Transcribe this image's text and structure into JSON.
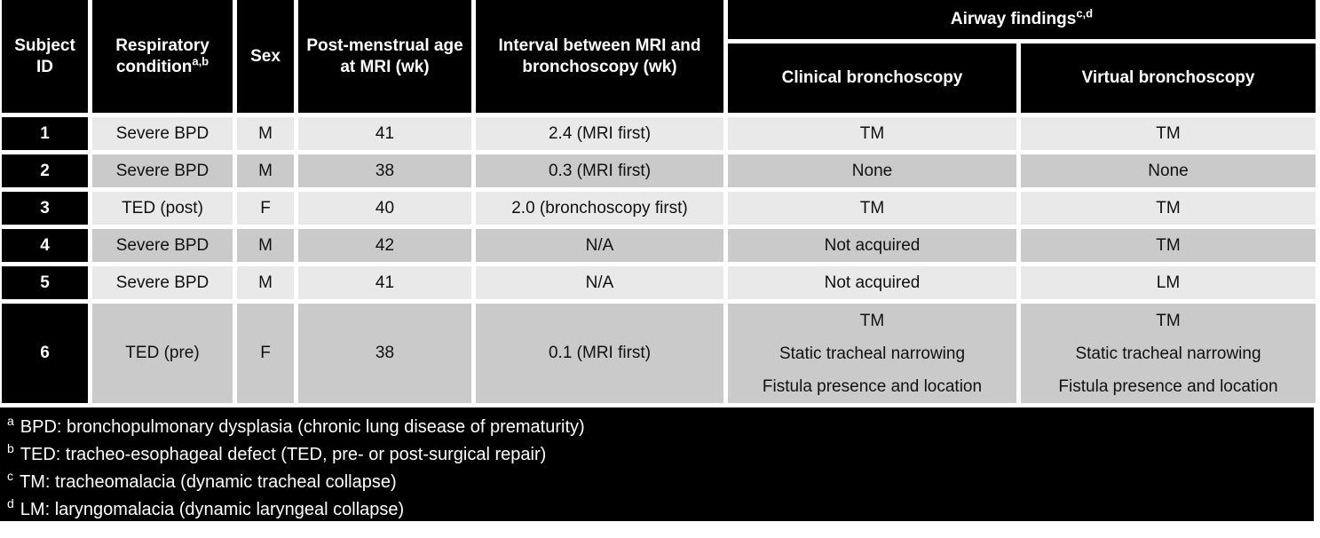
{
  "table": {
    "columns": [
      {
        "label": "Subject ID",
        "sup": ""
      },
      {
        "label": "Respiratory condition",
        "sup": "a,b"
      },
      {
        "label": "Sex",
        "sup": ""
      },
      {
        "label": "Post-menstrual age at MRI (wk)",
        "sup": ""
      },
      {
        "label": "Interval between MRI and bronchoscopy (wk)",
        "sup": ""
      }
    ],
    "airway_group": {
      "label": "Airway findings",
      "sup": "c,d",
      "sub_columns": [
        "Clinical bronchoscopy",
        "Virtual bronchoscopy"
      ]
    },
    "rows": [
      {
        "id": "1",
        "condition": "Severe BPD",
        "sex": "M",
        "pma": "41",
        "interval": "2.4 (MRI first)",
        "clinical": [
          "TM"
        ],
        "virtual": [
          "TM"
        ]
      },
      {
        "id": "2",
        "condition": "Severe BPD",
        "sex": "M",
        "pma": "38",
        "interval": "0.3 (MRI first)",
        "clinical": [
          "None"
        ],
        "virtual": [
          "None"
        ]
      },
      {
        "id": "3",
        "condition": "TED (post)",
        "sex": "F",
        "pma": "40",
        "interval": "2.0 (bronchoscopy first)",
        "clinical": [
          "TM"
        ],
        "virtual": [
          "TM"
        ]
      },
      {
        "id": "4",
        "condition": "Severe BPD",
        "sex": "M",
        "pma": "42",
        "interval": "N/A",
        "clinical": [
          "Not acquired"
        ],
        "virtual": [
          "TM"
        ]
      },
      {
        "id": "5",
        "condition": "Severe BPD",
        "sex": "M",
        "pma": "41",
        "interval": "N/A",
        "clinical": [
          "Not acquired"
        ],
        "virtual": [
          "LM"
        ]
      },
      {
        "id": "6",
        "condition": "TED (pre)",
        "sex": "F",
        "pma": "38",
        "interval": "0.1 (MRI first)",
        "clinical": [
          "TM",
          "Static tracheal narrowing",
          "Fistula presence and location"
        ],
        "virtual": [
          "TM",
          "Static tracheal narrowing",
          "Fistula presence and location"
        ]
      }
    ],
    "footnotes": [
      {
        "sup": "a",
        "text": "BPD: bronchopulmonary dysplasia (chronic lung disease of prematurity)"
      },
      {
        "sup": "b",
        "text": "TED: tracheo-esophageal defect (TED, pre- or post-surgical repair)"
      },
      {
        "sup": "c",
        "text": "TM: tracheomalacia (dynamic tracheal collapse)"
      },
      {
        "sup": "d",
        "text": "LM: laryngomalacia (dynamic laryngeal collapse)"
      }
    ],
    "colors": {
      "header_bg": "#000000",
      "header_text": "#ffffff",
      "row_light": "#e9e9e9",
      "row_dark": "#cacaca",
      "id_cell_bg": "#000000",
      "footnote_bg": "#000000",
      "footnote_text": "#ffffff",
      "gap": "#ffffff"
    }
  }
}
